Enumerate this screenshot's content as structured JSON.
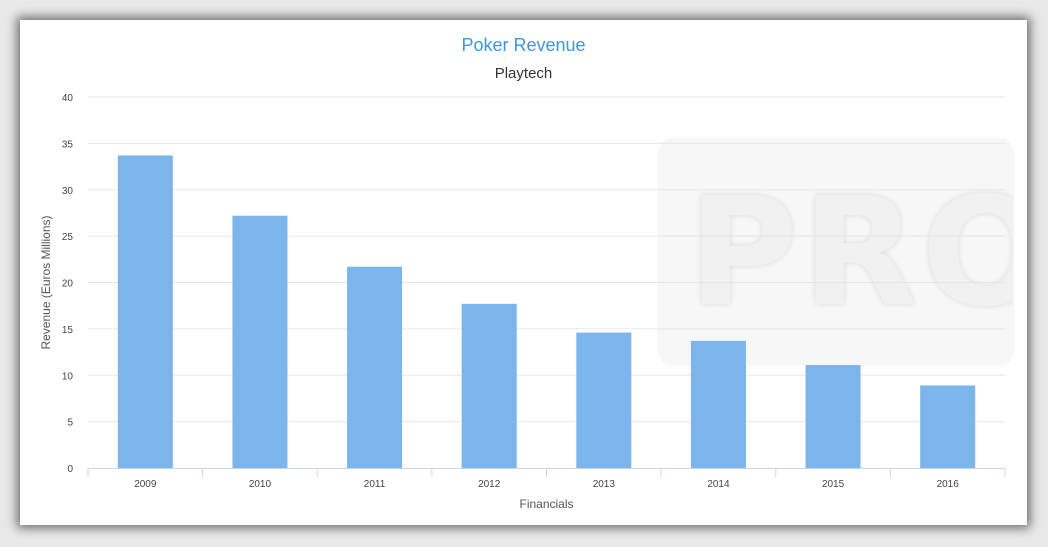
{
  "chart_data": {
    "type": "bar",
    "title": "Poker Revenue",
    "subtitle": "Playtech",
    "xlabel": "Financials",
    "ylabel": "Revenue (Euros Millions)",
    "categories": [
      "2009",
      "2010",
      "2011",
      "2012",
      "2013",
      "2014",
      "2015",
      "2016"
    ],
    "values": [
      33.7,
      27.2,
      21.7,
      17.7,
      14.6,
      13.7,
      11.1,
      8.9
    ],
    "ylim": [
      0,
      40
    ],
    "yticks": [
      0,
      5,
      10,
      15,
      20,
      25,
      30,
      35,
      40
    ],
    "grid": true,
    "legend": "none",
    "bar_color": "#7cb5ec"
  },
  "watermark": {
    "text": "PRO"
  }
}
